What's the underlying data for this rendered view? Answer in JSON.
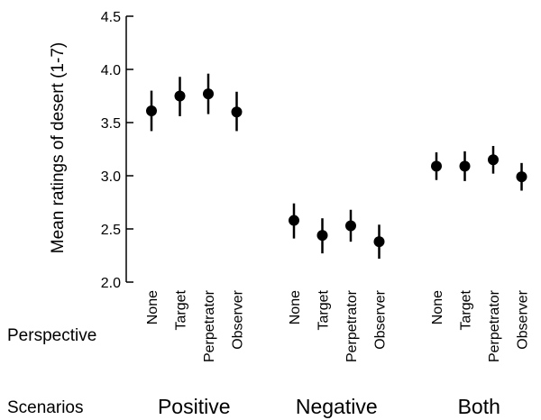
{
  "chart_data": {
    "type": "scatter",
    "ylabel": "Mean ratings of desert (1-7)",
    "ylim": [
      2.0,
      4.5
    ],
    "yticks": [
      "2.0",
      "2.5",
      "3.0",
      "3.5",
      "4.0",
      "4.5"
    ],
    "grid": false,
    "row_labels": {
      "perspective": "Perspective",
      "scenarios": "Scenarios"
    },
    "groups": [
      {
        "name": "Positive",
        "points": [
          {
            "perspective": "None",
            "mean": 3.61,
            "low": 3.42,
            "high": 3.8
          },
          {
            "perspective": "Target",
            "mean": 3.75,
            "low": 3.56,
            "high": 3.93
          },
          {
            "perspective": "Perpetrator",
            "mean": 3.77,
            "low": 3.58,
            "high": 3.96
          },
          {
            "perspective": "Observer",
            "mean": 3.6,
            "low": 3.42,
            "high": 3.79
          }
        ]
      },
      {
        "name": "Negative",
        "points": [
          {
            "perspective": "None",
            "mean": 2.58,
            "low": 2.41,
            "high": 2.74
          },
          {
            "perspective": "Target",
            "mean": 2.44,
            "low": 2.27,
            "high": 2.6
          },
          {
            "perspective": "Perpetrator",
            "mean": 2.53,
            "low": 2.38,
            "high": 2.68
          },
          {
            "perspective": "Observer",
            "mean": 2.38,
            "low": 2.22,
            "high": 2.54
          }
        ]
      },
      {
        "name": "Both",
        "points": [
          {
            "perspective": "None",
            "mean": 3.09,
            "low": 2.96,
            "high": 3.22
          },
          {
            "perspective": "Target",
            "mean": 3.09,
            "low": 2.95,
            "high": 3.23
          },
          {
            "perspective": "Perpetrator",
            "mean": 3.15,
            "low": 3.02,
            "high": 3.28
          },
          {
            "perspective": "Observer",
            "mean": 2.99,
            "low": 2.86,
            "high": 3.12
          }
        ]
      }
    ]
  }
}
